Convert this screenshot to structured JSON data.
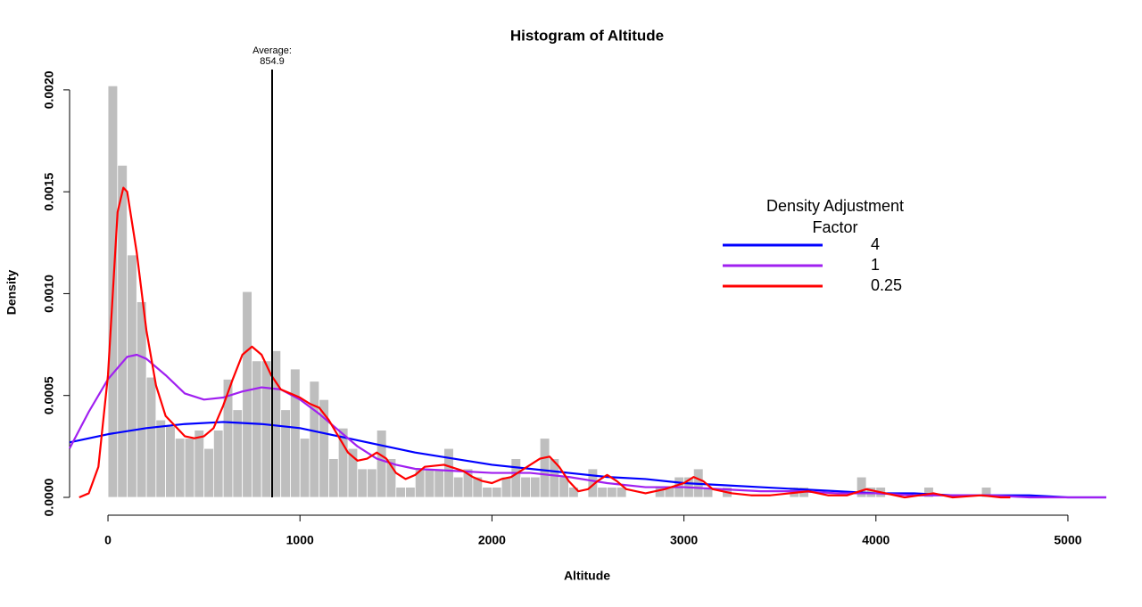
{
  "chart_data": {
    "type": "histogram",
    "title": "Histogram of Altitude",
    "xlabel": "Altitude",
    "ylabel": "Density",
    "bins": [
      0,
      50,
      100,
      150,
      200,
      250,
      300,
      350,
      400,
      450,
      500,
      550,
      600,
      650,
      700,
      750,
      800,
      850,
      900,
      950,
      1000,
      1050,
      1100,
      1150,
      1200,
      1250,
      1300,
      1350,
      1400,
      1450,
      1500,
      1550,
      1600,
      1650,
      1700,
      1750,
      1800,
      1850,
      1900,
      1950,
      2000,
      2050,
      2100,
      2150,
      2200,
      2250,
      2300,
      2350,
      2400,
      2450,
      2500,
      2550,
      2600,
      2650,
      2700,
      2750,
      2800,
      2850,
      2900,
      2950,
      3000,
      3050,
      3100,
      3150,
      3200,
      3250,
      3300,
      3350,
      3400,
      3450,
      3500,
      3550,
      3600,
      3650,
      3700,
      3750,
      3800,
      3850,
      3900,
      3950,
      4000,
      4050,
      4100,
      4150,
      4200,
      4250,
      4300,
      4350,
      4400,
      4450,
      4500,
      4550,
      4600
    ],
    "values": [
      0.00202,
      0.00163,
      0.00119,
      0.00096,
      0.00059,
      0.00038,
      0.00035,
      0.00029,
      0.00029,
      0.00033,
      0.00024,
      0.00033,
      0.00058,
      0.00043,
      0.00101,
      0.00067,
      0.00067,
      0.00072,
      0.00043,
      0.00063,
      0.00029,
      0.00057,
      0.00048,
      0.00019,
      0.00034,
      0.00024,
      0.00014,
      0.00014,
      0.00033,
      0.00019,
      5e-05,
      5e-05,
      0.00014,
      0.00014,
      0.00014,
      0.00024,
      0.0001,
      0.00014,
      0.0001,
      5e-05,
      5e-05,
      0.0001,
      0.00019,
      0.0001,
      0.0001,
      0.00029,
      0.00019,
      0.0001,
      5e-05,
      0,
      0.00014,
      5e-05,
      5e-05,
      5e-05,
      0,
      0,
      0,
      5e-05,
      5e-05,
      0.0001,
      0.0001,
      0.00014,
      5e-05,
      0,
      5e-05,
      0,
      0,
      0,
      0,
      0,
      0,
      5e-05,
      5e-05,
      0,
      0,
      0,
      0,
      0,
      0.0001,
      5e-05,
      5e-05,
      0,
      0,
      0,
      0,
      5e-05,
      0,
      0,
      0,
      0,
      0,
      5e-05
    ],
    "color": "#bebebe",
    "series": [
      {
        "name": "4",
        "color": "#0000ff",
        "x": [
          -200,
          0,
          200,
          400,
          600,
          800,
          1000,
          1200,
          1400,
          1600,
          1800,
          2000,
          2200,
          2400,
          2600,
          2800,
          3000,
          3200,
          3400,
          3600,
          3800,
          4000,
          4200,
          4400,
          4600,
          4800,
          5000,
          5200
        ],
        "values": [
          0.00027,
          0.00031,
          0.00034,
          0.00036,
          0.00037,
          0.00036,
          0.00034,
          0.0003,
          0.00026,
          0.00022,
          0.00019,
          0.00016,
          0.00014,
          0.00012,
          0.0001,
          9e-05,
          7e-05,
          6e-05,
          5e-05,
          4e-05,
          3e-05,
          2e-05,
          2e-05,
          1e-05,
          1e-05,
          1e-05,
          0,
          0
        ]
      },
      {
        "name": "1",
        "color": "#a020f0",
        "x": [
          -200,
          -100,
          0,
          100,
          150,
          200,
          300,
          400,
          500,
          600,
          700,
          800,
          900,
          1000,
          1100,
          1200,
          1300,
          1400,
          1500,
          1600,
          1800,
          2000,
          2200,
          2400,
          2600,
          2800,
          3000,
          3200,
          3400,
          3600,
          3800,
          4000,
          4200,
          4400,
          4600,
          4800,
          5200
        ],
        "values": [
          0.00024,
          0.00042,
          0.00058,
          0.00069,
          0.0007,
          0.00068,
          0.0006,
          0.00051,
          0.00048,
          0.00049,
          0.00052,
          0.00054,
          0.00053,
          0.00048,
          0.00041,
          0.00033,
          0.00025,
          0.00019,
          0.00016,
          0.00014,
          0.00013,
          0.00012,
          0.00012,
          0.0001,
          7e-05,
          5e-05,
          5e-05,
          4e-05,
          3e-05,
          3e-05,
          2e-05,
          2e-05,
          1e-05,
          1e-05,
          1e-05,
          0,
          0
        ]
      },
      {
        "name": "0.25",
        "color": "#ff0000",
        "x": [
          -150,
          -100,
          -50,
          0,
          50,
          80,
          100,
          150,
          200,
          250,
          300,
          400,
          450,
          500,
          550,
          600,
          650,
          700,
          750,
          800,
          850,
          900,
          950,
          1000,
          1050,
          1100,
          1150,
          1200,
          1250,
          1300,
          1350,
          1400,
          1450,
          1500,
          1550,
          1600,
          1650,
          1750,
          1850,
          1900,
          1950,
          2000,
          2050,
          2100,
          2150,
          2250,
          2300,
          2350,
          2400,
          2450,
          2500,
          2550,
          2600,
          2650,
          2700,
          2800,
          2900,
          3000,
          3050,
          3100,
          3150,
          3250,
          3350,
          3450,
          3550,
          3650,
          3750,
          3850,
          3950,
          4050,
          4150,
          4300,
          4400,
          4550,
          4650,
          4700
        ],
        "values": [
          0,
          2e-05,
          0.00015,
          0.0006,
          0.0014,
          0.00152,
          0.0015,
          0.0012,
          0.00082,
          0.00055,
          0.0004,
          0.0003,
          0.00029,
          0.0003,
          0.00034,
          0.00045,
          0.00058,
          0.0007,
          0.00074,
          0.0007,
          0.0006,
          0.00053,
          0.00051,
          0.00049,
          0.00046,
          0.00044,
          0.00038,
          0.0003,
          0.00022,
          0.00018,
          0.00019,
          0.00022,
          0.00019,
          0.00012,
          9e-05,
          0.00011,
          0.00015,
          0.00016,
          0.00013,
          0.0001,
          8e-05,
          7e-05,
          9e-05,
          0.0001,
          0.00013,
          0.00019,
          0.0002,
          0.00015,
          8e-05,
          3e-05,
          4e-05,
          8e-05,
          0.00011,
          8e-05,
          4e-05,
          2e-05,
          4e-05,
          7e-05,
          0.0001,
          8e-05,
          4e-05,
          2e-05,
          1e-05,
          1e-05,
          2e-05,
          3e-05,
          1e-05,
          1e-05,
          4e-05,
          2e-05,
          0,
          2e-05,
          0,
          1e-05,
          0,
          0
        ]
      }
    ],
    "vline": {
      "value": 854.9,
      "label": [
        "Average:",
        "854.9"
      ]
    },
    "legend_title": [
      "Density Adjustment",
      "Factor"
    ],
    "xlim": [
      -200,
      5200
    ],
    "xticks": [
      0,
      1000,
      2000,
      3000,
      4000,
      5000
    ],
    "ylim": [
      0,
      0.0021
    ],
    "yticks": [
      {
        "value": 0,
        "label": "0.0000"
      },
      {
        "value": 0.0005,
        "label": "0.0005"
      },
      {
        "value": 0.001,
        "label": "0.0010"
      },
      {
        "value": 0.0015,
        "label": "0.0015"
      },
      {
        "value": 0.002,
        "label": "0.0020"
      }
    ]
  }
}
